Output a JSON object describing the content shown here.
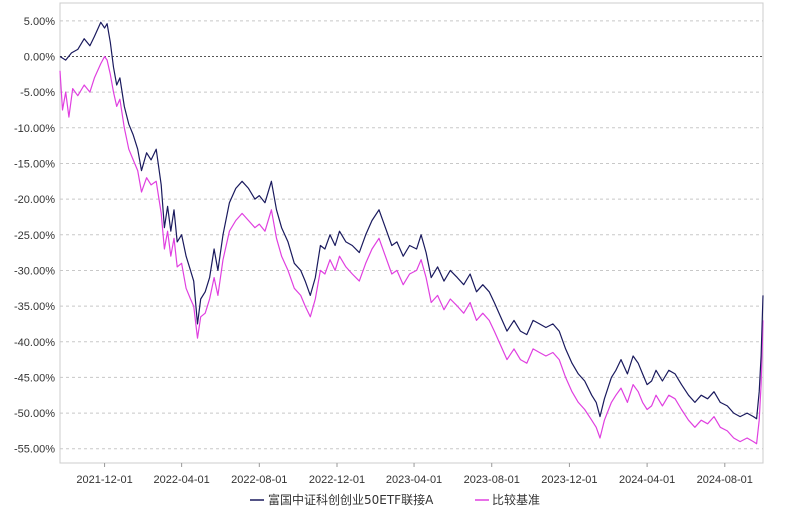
{
  "chart_data": {
    "type": "line",
    "title": "",
    "xlabel": "",
    "ylabel": "",
    "ylim": [
      -57,
      7.5
    ],
    "y_tick_values": [
      5,
      0,
      -5,
      -10,
      -15,
      -20,
      -25,
      -30,
      -35,
      -40,
      -45,
      -50,
      -55
    ],
    "y_tick_labels": [
      "5.00%",
      "0.00%",
      "-5.00%",
      "-10.00%",
      "-15.00%",
      "-20.00%",
      "-25.00%",
      "-30.00%",
      "-35.00%",
      "-40.00%",
      "-45.00%",
      "-50.00%",
      "-55.00%"
    ],
    "x_tick_labels": [
      "2021-12-01",
      "2022-04-01",
      "2022-08-01",
      "2022-12-01",
      "2023-04-01",
      "2023-08-01",
      "2023-12-01",
      "2024-04-01",
      "2024-08-01"
    ],
    "xlim": [
      "2021-09-22",
      "2024-09-30"
    ],
    "grid": true,
    "zero_line": true,
    "legend_position": "bottom",
    "series": [
      {
        "name": "富国中证科创创业50ETF联接A",
        "color": "#1a1a5e",
        "points": [
          [
            "2021-09-22",
            0.0
          ],
          [
            "2021-10-01",
            -0.5
          ],
          [
            "2021-10-10",
            0.5
          ],
          [
            "2021-10-20",
            1.0
          ],
          [
            "2021-10-30",
            2.5
          ],
          [
            "2021-11-08",
            1.5
          ],
          [
            "2021-11-15",
            2.8
          ],
          [
            "2021-11-25",
            4.8
          ],
          [
            "2021-12-01",
            4.0
          ],
          [
            "2021-12-05",
            4.6
          ],
          [
            "2021-12-10",
            2.0
          ],
          [
            "2021-12-15",
            -1.5
          ],
          [
            "2021-12-20",
            -4.0
          ],
          [
            "2021-12-25",
            -3.0
          ],
          [
            "2022-01-01",
            -7.0
          ],
          [
            "2022-01-08",
            -9.5
          ],
          [
            "2022-01-15",
            -11.0
          ],
          [
            "2022-01-22",
            -13.0
          ],
          [
            "2022-01-28",
            -16.0
          ],
          [
            "2022-02-05",
            -13.5
          ],
          [
            "2022-02-12",
            -14.5
          ],
          [
            "2022-02-20",
            -13.0
          ],
          [
            "2022-02-28",
            -18.0
          ],
          [
            "2022-03-05",
            -24.0
          ],
          [
            "2022-03-10",
            -21.0
          ],
          [
            "2022-03-15",
            -24.5
          ],
          [
            "2022-03-20",
            -21.5
          ],
          [
            "2022-03-25",
            -26.0
          ],
          [
            "2022-04-01",
            -25.0
          ],
          [
            "2022-04-08",
            -28.0
          ],
          [
            "2022-04-15",
            -30.0
          ],
          [
            "2022-04-20",
            -31.5
          ],
          [
            "2022-04-26",
            -37.5
          ],
          [
            "2022-05-01",
            -34.0
          ],
          [
            "2022-05-08",
            -33.0
          ],
          [
            "2022-05-15",
            -31.0
          ],
          [
            "2022-05-22",
            -27.0
          ],
          [
            "2022-05-28",
            -30.0
          ],
          [
            "2022-06-05",
            -25.0
          ],
          [
            "2022-06-15",
            -20.5
          ],
          [
            "2022-06-25",
            -18.5
          ],
          [
            "2022-07-05",
            -17.5
          ],
          [
            "2022-07-15",
            -18.5
          ],
          [
            "2022-07-25",
            -20.0
          ],
          [
            "2022-08-01",
            -19.5
          ],
          [
            "2022-08-10",
            -20.5
          ],
          [
            "2022-08-20",
            -17.5
          ],
          [
            "2022-08-28",
            -21.5
          ],
          [
            "2022-09-05",
            -24.0
          ],
          [
            "2022-09-15",
            -26.0
          ],
          [
            "2022-09-25",
            -29.0
          ],
          [
            "2022-10-05",
            -30.0
          ],
          [
            "2022-10-12",
            -31.5
          ],
          [
            "2022-10-20",
            -33.5
          ],
          [
            "2022-10-28",
            -31.0
          ],
          [
            "2022-11-05",
            -26.5
          ],
          [
            "2022-11-12",
            -27.0
          ],
          [
            "2022-11-20",
            -25.0
          ],
          [
            "2022-11-28",
            -26.5
          ],
          [
            "2022-12-05",
            -24.5
          ],
          [
            "2022-12-15",
            -26.0
          ],
          [
            "2022-12-25",
            -26.5
          ],
          [
            "2023-01-05",
            -27.5
          ],
          [
            "2023-01-15",
            -25.0
          ],
          [
            "2023-01-25",
            -23.0
          ],
          [
            "2023-02-05",
            -21.5
          ],
          [
            "2023-02-15",
            -24.0
          ],
          [
            "2023-02-25",
            -26.5
          ],
          [
            "2023-03-05",
            -26.0
          ],
          [
            "2023-03-15",
            -28.0
          ],
          [
            "2023-03-25",
            -26.5
          ],
          [
            "2023-04-05",
            -27.0
          ],
          [
            "2023-04-12",
            -25.0
          ],
          [
            "2023-04-20",
            -27.5
          ],
          [
            "2023-04-28",
            -31.0
          ],
          [
            "2023-05-08",
            -29.5
          ],
          [
            "2023-05-18",
            -31.5
          ],
          [
            "2023-05-28",
            -30.0
          ],
          [
            "2023-06-08",
            -31.0
          ],
          [
            "2023-06-18",
            -32.0
          ],
          [
            "2023-06-28",
            -30.5
          ],
          [
            "2023-07-08",
            -33.0
          ],
          [
            "2023-07-18",
            -32.0
          ],
          [
            "2023-07-28",
            -33.0
          ],
          [
            "2023-08-05",
            -34.5
          ],
          [
            "2023-08-15",
            -36.5
          ],
          [
            "2023-08-25",
            -38.5
          ],
          [
            "2023-09-05",
            -37.0
          ],
          [
            "2023-09-15",
            -38.5
          ],
          [
            "2023-09-25",
            -39.0
          ],
          [
            "2023-10-05",
            -37.0
          ],
          [
            "2023-10-15",
            -37.5
          ],
          [
            "2023-10-25",
            -38.0
          ],
          [
            "2023-11-05",
            -37.5
          ],
          [
            "2023-11-15",
            -38.5
          ],
          [
            "2023-11-25",
            -41.0
          ],
          [
            "2023-12-05",
            -43.0
          ],
          [
            "2023-12-15",
            -44.5
          ],
          [
            "2023-12-25",
            -45.5
          ],
          [
            "2024-01-05",
            -47.5
          ],
          [
            "2024-01-12",
            -48.5
          ],
          [
            "2024-01-18",
            -50.5
          ],
          [
            "2024-01-25",
            -48.0
          ],
          [
            "2024-02-05",
            -45.0
          ],
          [
            "2024-02-12",
            -44.0
          ],
          [
            "2024-02-20",
            -42.5
          ],
          [
            "2024-03-01",
            -44.5
          ],
          [
            "2024-03-10",
            -42.0
          ],
          [
            "2024-03-18",
            -43.0
          ],
          [
            "2024-03-25",
            -44.5
          ],
          [
            "2024-04-01",
            -46.0
          ],
          [
            "2024-04-08",
            -45.5
          ],
          [
            "2024-04-15",
            -44.0
          ],
          [
            "2024-04-25",
            -45.5
          ],
          [
            "2024-05-05",
            -44.0
          ],
          [
            "2024-05-15",
            -44.5
          ],
          [
            "2024-05-25",
            -46.0
          ],
          [
            "2024-06-05",
            -47.5
          ],
          [
            "2024-06-15",
            -48.5
          ],
          [
            "2024-06-25",
            -47.5
          ],
          [
            "2024-07-05",
            -48.0
          ],
          [
            "2024-07-15",
            -47.0
          ],
          [
            "2024-07-25",
            -48.5
          ],
          [
            "2024-08-05",
            -49.0
          ],
          [
            "2024-08-15",
            -50.0
          ],
          [
            "2024-08-25",
            -50.5
          ],
          [
            "2024-09-05",
            -50.0
          ],
          [
            "2024-09-15",
            -50.5
          ],
          [
            "2024-09-20",
            -50.8
          ],
          [
            "2024-09-24",
            -47.0
          ],
          [
            "2024-09-27",
            -42.0
          ],
          [
            "2024-09-30",
            -33.5
          ]
        ]
      },
      {
        "name": "比较基准",
        "color": "#e040e0",
        "points": [
          [
            "2021-09-22",
            -2.0
          ],
          [
            "2021-09-26",
            -7.5
          ],
          [
            "2021-10-01",
            -5.0
          ],
          [
            "2021-10-06",
            -8.5
          ],
          [
            "2021-10-12",
            -4.5
          ],
          [
            "2021-10-20",
            -5.5
          ],
          [
            "2021-10-30",
            -4.0
          ],
          [
            "2021-11-08",
            -5.0
          ],
          [
            "2021-11-15",
            -3.0
          ],
          [
            "2021-11-25",
            -1.0
          ],
          [
            "2021-12-01",
            0.0
          ],
          [
            "2021-12-05",
            -0.5
          ],
          [
            "2021-12-10",
            -2.5
          ],
          [
            "2021-12-15",
            -5.0
          ],
          [
            "2021-12-20",
            -7.0
          ],
          [
            "2021-12-25",
            -6.0
          ],
          [
            "2022-01-01",
            -10.0
          ],
          [
            "2022-01-08",
            -13.0
          ],
          [
            "2022-01-15",
            -14.5
          ],
          [
            "2022-01-22",
            -16.0
          ],
          [
            "2022-01-28",
            -19.0
          ],
          [
            "2022-02-05",
            -17.0
          ],
          [
            "2022-02-12",
            -18.0
          ],
          [
            "2022-02-20",
            -17.5
          ],
          [
            "2022-02-28",
            -22.0
          ],
          [
            "2022-03-05",
            -27.0
          ],
          [
            "2022-03-10",
            -24.5
          ],
          [
            "2022-03-15",
            -28.0
          ],
          [
            "2022-03-20",
            -25.5
          ],
          [
            "2022-03-25",
            -29.5
          ],
          [
            "2022-04-01",
            -29.0
          ],
          [
            "2022-04-08",
            -32.5
          ],
          [
            "2022-04-15",
            -34.0
          ],
          [
            "2022-04-20",
            -35.0
          ],
          [
            "2022-04-26",
            -39.5
          ],
          [
            "2022-05-01",
            -36.5
          ],
          [
            "2022-05-08",
            -36.0
          ],
          [
            "2022-05-15",
            -34.0
          ],
          [
            "2022-05-22",
            -31.0
          ],
          [
            "2022-05-28",
            -33.5
          ],
          [
            "2022-06-05",
            -28.5
          ],
          [
            "2022-06-15",
            -24.5
          ],
          [
            "2022-06-25",
            -23.0
          ],
          [
            "2022-07-05",
            -22.0
          ],
          [
            "2022-07-15",
            -23.0
          ],
          [
            "2022-07-25",
            -24.0
          ],
          [
            "2022-08-01",
            -23.5
          ],
          [
            "2022-08-10",
            -24.5
          ],
          [
            "2022-08-20",
            -21.5
          ],
          [
            "2022-08-28",
            -25.5
          ],
          [
            "2022-09-05",
            -28.0
          ],
          [
            "2022-09-15",
            -30.0
          ],
          [
            "2022-09-25",
            -32.5
          ],
          [
            "2022-10-05",
            -33.5
          ],
          [
            "2022-10-12",
            -35.0
          ],
          [
            "2022-10-20",
            -36.5
          ],
          [
            "2022-10-28",
            -34.0
          ],
          [
            "2022-11-05",
            -30.0
          ],
          [
            "2022-11-12",
            -30.5
          ],
          [
            "2022-11-20",
            -28.5
          ],
          [
            "2022-11-28",
            -30.0
          ],
          [
            "2022-12-05",
            -28.0
          ],
          [
            "2022-12-15",
            -29.5
          ],
          [
            "2022-12-25",
            -30.5
          ],
          [
            "2023-01-05",
            -31.5
          ],
          [
            "2023-01-15",
            -29.0
          ],
          [
            "2023-01-25",
            -27.0
          ],
          [
            "2023-02-05",
            -25.5
          ],
          [
            "2023-02-15",
            -28.0
          ],
          [
            "2023-02-25",
            -30.5
          ],
          [
            "2023-03-05",
            -30.0
          ],
          [
            "2023-03-15",
            -32.0
          ],
          [
            "2023-03-25",
            -30.5
          ],
          [
            "2023-04-05",
            -30.0
          ],
          [
            "2023-04-12",
            -28.5
          ],
          [
            "2023-04-20",
            -31.0
          ],
          [
            "2023-04-28",
            -34.5
          ],
          [
            "2023-05-08",
            -33.5
          ],
          [
            "2023-05-18",
            -35.5
          ],
          [
            "2023-05-28",
            -34.0
          ],
          [
            "2023-06-08",
            -35.0
          ],
          [
            "2023-06-18",
            -36.0
          ],
          [
            "2023-06-28",
            -34.5
          ],
          [
            "2023-07-08",
            -37.0
          ],
          [
            "2023-07-18",
            -36.0
          ],
          [
            "2023-07-28",
            -37.0
          ],
          [
            "2023-08-05",
            -38.5
          ],
          [
            "2023-08-15",
            -40.5
          ],
          [
            "2023-08-25",
            -42.5
          ],
          [
            "2023-09-05",
            -41.0
          ],
          [
            "2023-09-15",
            -42.5
          ],
          [
            "2023-09-25",
            -43.0
          ],
          [
            "2023-10-05",
            -41.0
          ],
          [
            "2023-10-15",
            -41.5
          ],
          [
            "2023-10-25",
            -42.0
          ],
          [
            "2023-11-05",
            -41.5
          ],
          [
            "2023-11-15",
            -42.5
          ],
          [
            "2023-11-25",
            -45.0
          ],
          [
            "2023-12-05",
            -47.0
          ],
          [
            "2023-12-15",
            -48.5
          ],
          [
            "2023-12-25",
            -49.5
          ],
          [
            "2024-01-05",
            -51.0
          ],
          [
            "2024-01-12",
            -52.0
          ],
          [
            "2024-01-18",
            -53.5
          ],
          [
            "2024-01-25",
            -51.0
          ],
          [
            "2024-02-05",
            -48.5
          ],
          [
            "2024-02-12",
            -47.5
          ],
          [
            "2024-02-20",
            -46.5
          ],
          [
            "2024-03-01",
            -48.5
          ],
          [
            "2024-03-10",
            -46.0
          ],
          [
            "2024-03-18",
            -47.0
          ],
          [
            "2024-03-25",
            -48.5
          ],
          [
            "2024-04-01",
            -49.5
          ],
          [
            "2024-04-08",
            -49.0
          ],
          [
            "2024-04-15",
            -47.5
          ],
          [
            "2024-04-25",
            -49.0
          ],
          [
            "2024-05-05",
            -47.5
          ],
          [
            "2024-05-15",
            -48.0
          ],
          [
            "2024-05-25",
            -49.5
          ],
          [
            "2024-06-05",
            -51.0
          ],
          [
            "2024-06-15",
            -52.0
          ],
          [
            "2024-06-25",
            -51.0
          ],
          [
            "2024-07-05",
            -51.5
          ],
          [
            "2024-07-15",
            -50.5
          ],
          [
            "2024-07-25",
            -52.0
          ],
          [
            "2024-08-05",
            -52.5
          ],
          [
            "2024-08-15",
            -53.5
          ],
          [
            "2024-08-25",
            -54.0
          ],
          [
            "2024-09-05",
            -53.5
          ],
          [
            "2024-09-15",
            -54.0
          ],
          [
            "2024-09-20",
            -54.3
          ],
          [
            "2024-09-24",
            -51.0
          ],
          [
            "2024-09-27",
            -46.0
          ],
          [
            "2024-09-30",
            -37.0
          ]
        ]
      }
    ]
  }
}
